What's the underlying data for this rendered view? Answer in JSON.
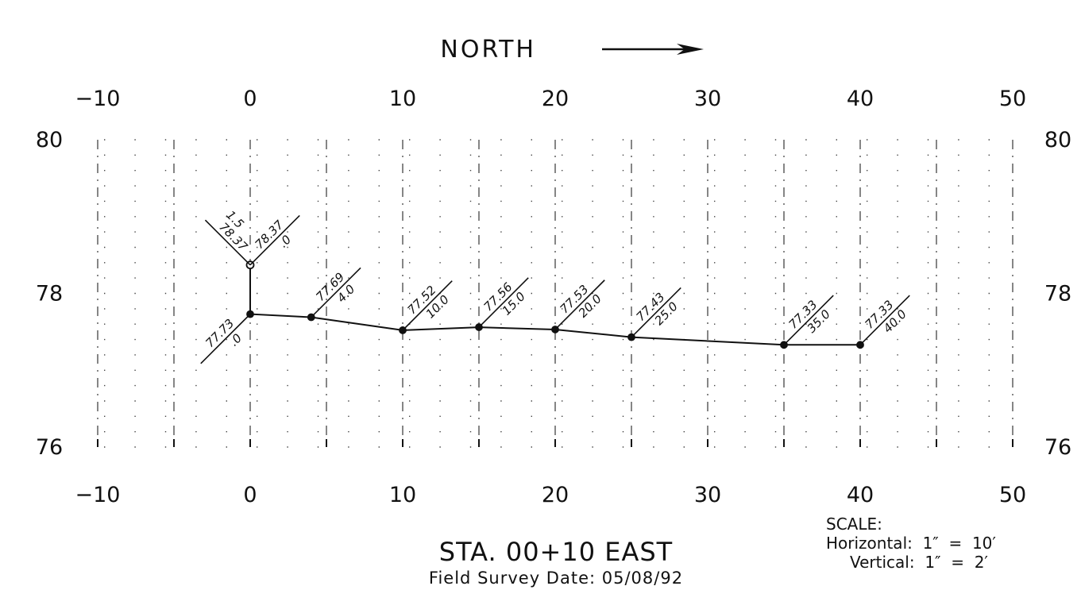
{
  "chart_data": {
    "type": "line",
    "title": "NORTH",
    "title_arrow": "——→",
    "xlim": [
      -10,
      50
    ],
    "ylim": [
      76,
      80
    ],
    "x_ticks": [
      -10,
      0,
      10,
      20,
      30,
      40,
      50
    ],
    "x_tick_labels": [
      "−10",
      "0",
      "10",
      "20",
      "30",
      "40",
      "50"
    ],
    "y_ticks": [
      76,
      78,
      80
    ],
    "y_tick_labels": [
      "76",
      "78",
      "80"
    ],
    "grid": true,
    "series": [
      {
        "points": [
          {
            "x": 0,
            "y": 78.37,
            "label": "78.37",
            "sub": ".0"
          },
          {
            "x": 0,
            "y": 77.73,
            "label": "77.73",
            "sub": ".0"
          },
          {
            "x": 4,
            "y": 77.69,
            "label": "77.69",
            "sub": "4.0"
          },
          {
            "x": 10,
            "y": 77.52,
            "label": "77.52",
            "sub": "10.0"
          },
          {
            "x": 15,
            "y": 77.56,
            "label": "77.56",
            "sub": "15.0"
          },
          {
            "x": 20,
            "y": 77.53,
            "label": "77.53",
            "sub": "20.0"
          },
          {
            "x": 25,
            "y": 77.43,
            "label": "77.43",
            "sub": "25.0"
          },
          {
            "x": 35,
            "y": 77.33,
            "label": "77.33",
            "sub": "35.0"
          },
          {
            "x": 40,
            "y": 77.33,
            "label": "77.33",
            "sub": "40.0"
          }
        ]
      }
    ],
    "extra_label": {
      "x": 0,
      "y": 78.37,
      "label": "78.37",
      "sub": "1.5"
    }
  },
  "footer": {
    "title": "STA.  00+10  EAST",
    "subtitle": "Field  Survey  Date:  05/08/92"
  },
  "scale": {
    "heading": "SCALE:",
    "horizontal": "Horizontal:  1″  =  10′",
    "vertical": "Vertical:  1″  =  2′"
  }
}
